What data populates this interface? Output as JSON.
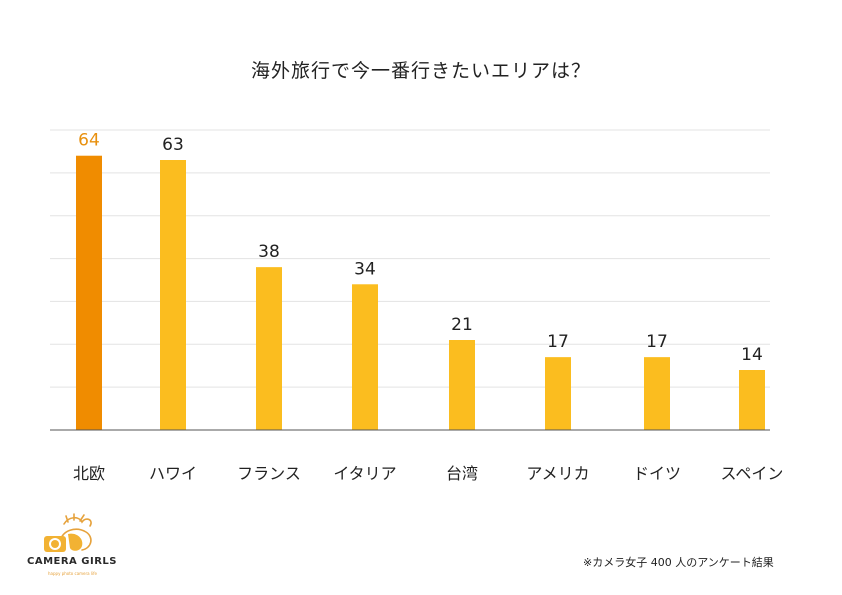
{
  "chart_data": {
    "type": "bar",
    "title": "海外旅行で今一番行きたいエリアは？",
    "categories": [
      "北欧",
      "ハワイ",
      "フランス",
      "イタリア",
      "台湾",
      "アメリカ",
      "ドイツ",
      "スペイン"
    ],
    "values": [
      64,
      63,
      38,
      34,
      21,
      17,
      17,
      14
    ],
    "highlight_index": 0,
    "colors": {
      "highlight": "#f08c00",
      "bar": "#fbbd1f",
      "highlight_label": "#e8900e",
      "grid": "#e3e3e3",
      "axis": "#555555",
      "text": "#222222"
    },
    "ylim": [
      0,
      70
    ],
    "grid": true,
    "xlabel": "",
    "ylabel": ""
  },
  "logo": {
    "text": "CAMERA GIRLS",
    "sub": "happy photo camera life"
  },
  "footnote": "※カメラ女子 400 人のアンケート結果"
}
